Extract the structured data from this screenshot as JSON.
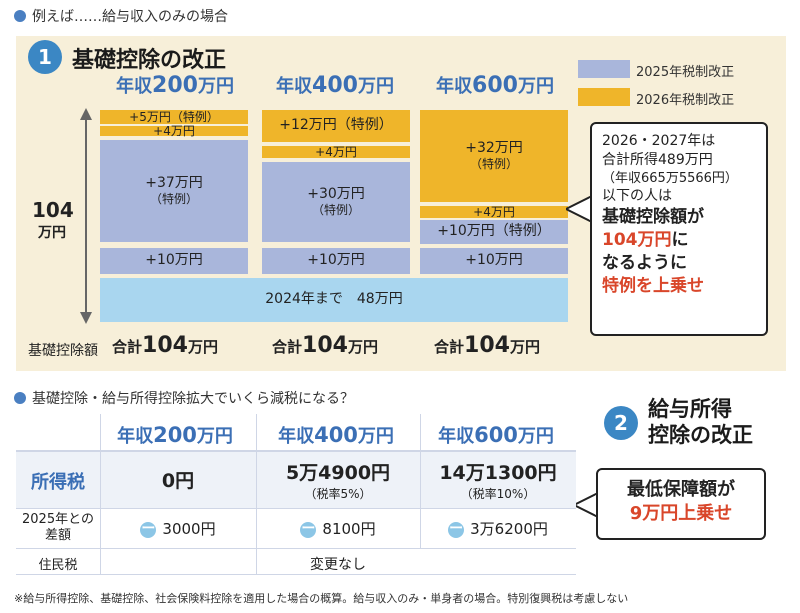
{
  "top_section_title": "例えば……給与収入のみの場合",
  "section1": {
    "number": "1",
    "title": "基礎控除の改正"
  },
  "legend": [
    {
      "label": "2025年税制改正",
      "color": "#a9b6db"
    },
    {
      "label": "2026年税制改正",
      "color": "#efb52a"
    }
  ],
  "axis": {
    "label_top": "104",
    "label_bottom": "万円"
  },
  "base_bar_label": "2024年まで　48万円",
  "row_label_total": "基礎控除額",
  "chart_data": {
    "type": "bar",
    "stacked": true,
    "categories": [
      "年収200万円",
      "年収400万円",
      "年収600万円"
    ],
    "series": [
      {
        "name": "",
        "values": [
          48,
          48,
          48
        ]
      },
      {
        "name": "2025年税制改正",
        "values": [
          10,
          10,
          10
        ]
      },
      {
        "name": "2025年税制改正",
        "values": [
          37,
          30,
          10
        ]
      },
      {
        "name": "2026年税制改正",
        "values": [
          4,
          4,
          4
        ]
      },
      {
        "name": "2026年税制改正",
        "values": [
          5,
          12,
          32
        ]
      }
    ],
    "totals": [
      "合計104万円",
      "合計104万円",
      "合計104万円"
    ]
  },
  "columns": [
    {
      "head_prefix": "年収",
      "head_num": "200",
      "head_suffix": "万円",
      "total_prefix": "合計",
      "total_num": "104",
      "total_suffix": "万円",
      "segments": {
        "gold_top": {
          "main": "+5万円（特例）",
          "sub": ""
        },
        "gold_mid": {
          "main": "+4万円",
          "sub": ""
        },
        "blue_top": {
          "main": "+37万円",
          "sub": "（特例）"
        },
        "blue_low": {
          "main": "+10万円",
          "sub": ""
        }
      }
    },
    {
      "head_prefix": "年収",
      "head_num": "400",
      "head_suffix": "万円",
      "total_prefix": "合計",
      "total_num": "104",
      "total_suffix": "万円",
      "segments": {
        "gold_top": {
          "main": "+12万円（特例）",
          "sub": ""
        },
        "gold_mid": {
          "main": "+4万円",
          "sub": ""
        },
        "blue_top": {
          "main": "+30万円",
          "sub": "（特例）"
        },
        "blue_low": {
          "main": "+10万円",
          "sub": ""
        }
      }
    },
    {
      "head_prefix": "年収",
      "head_num": "600",
      "head_suffix": "万円",
      "total_prefix": "合計",
      "total_num": "104",
      "total_suffix": "万円",
      "segments": {
        "gold_top": {
          "main": "+32万円",
          "sub": "（特例）"
        },
        "gold_mid": {
          "main": "+4万円",
          "sub": ""
        },
        "blue_top": {
          "main": "+10万円（特例）",
          "sub": ""
        },
        "blue_low": {
          "main": "+10万円",
          "sub": ""
        }
      }
    }
  ],
  "callout1": {
    "lines": [
      "2026・2027年は",
      "合計所得489万円",
      "（年収665万5566円）",
      "以下の人は"
    ],
    "bold1": "基礎控除額が",
    "red1": "104万円",
    "bold2": "に",
    "bold3": "なるように",
    "red2": "特例を上乗せ"
  },
  "section2_question": "基礎控除・給与所得控除拡大でいくら減税になる？",
  "section2": {
    "number": "2",
    "title_line1": "給与所得",
    "title_line2": "控除の改正"
  },
  "callout2": {
    "line1": "最低保障額が",
    "line2": "9万円上乗せ"
  },
  "table": {
    "headers": [
      {
        "prefix": "年収",
        "num": "200",
        "suffix": "万円"
      },
      {
        "prefix": "年収",
        "num": "400",
        "suffix": "万円"
      },
      {
        "prefix": "年収",
        "num": "600",
        "suffix": "万円"
      }
    ],
    "row_income_tax": {
      "label": "所得税",
      "cells": [
        {
          "main": "0円",
          "sub": ""
        },
        {
          "main": "5万4900円",
          "sub": "（税率5%）"
        },
        {
          "main": "14万1300円",
          "sub": "（税率10%）"
        }
      ]
    },
    "row_diff": {
      "label1": "2025年との",
      "label2": "差額",
      "minus": "ー",
      "cells": [
        "3000円",
        "8100円",
        "3万6200円"
      ]
    },
    "row_resident": {
      "label": "住民税",
      "value": "変更なし"
    }
  },
  "footnote": "※給与所得控除、基礎控除、社会保険料控除を適用した場合の概算。給与収入のみ・単身者の場合。特別復興税は考慮しない"
}
